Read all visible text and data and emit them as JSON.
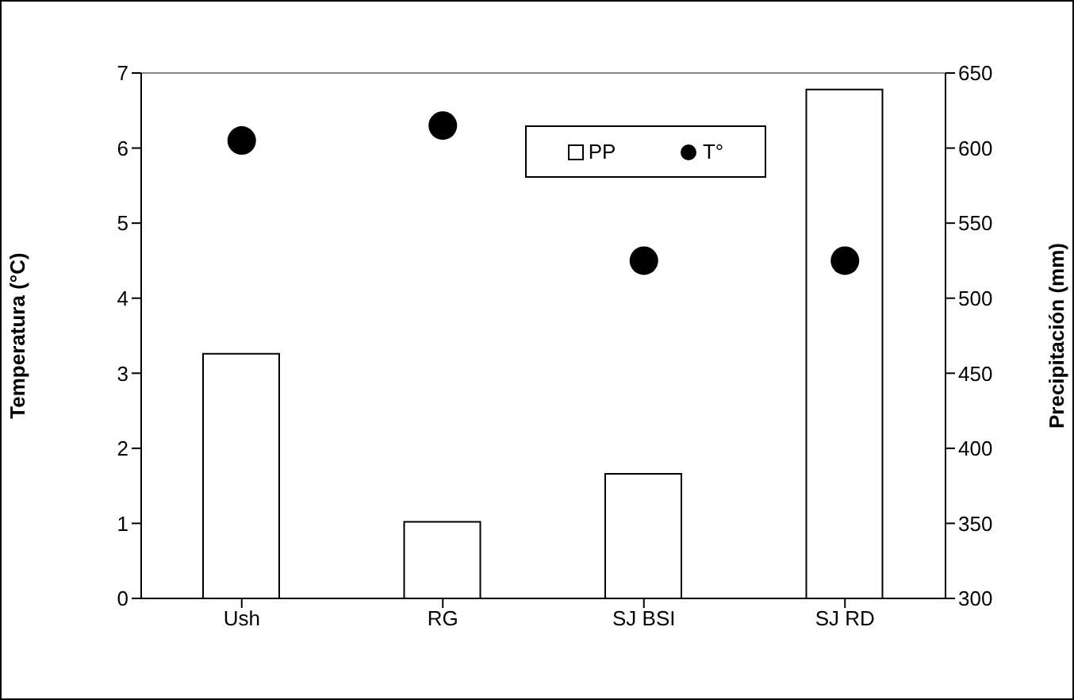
{
  "chart_data": {
    "type": "bar",
    "categories": [
      "Ush",
      "RG",
      "SJ BSI",
      "SJ RD"
    ],
    "series": [
      {
        "name": "PP",
        "axis": "y2",
        "color": "#ffffff",
        "values": [
          463,
          351,
          383,
          639
        ]
      },
      {
        "name": "T°",
        "type": "scatter",
        "color": "#000000",
        "marker": "circle",
        "values": [
          6.1,
          6.3,
          4.5,
          4.5
        ]
      }
    ],
    "ylabel": "Temperatura (°C)",
    "y2label": "Precipitación (mm)",
    "ylim": [
      0,
      7
    ],
    "yticks": [
      0,
      1,
      2,
      3,
      4,
      5,
      6,
      7
    ],
    "y2lim": [
      300,
      650
    ],
    "y2ticks": [
      300,
      350,
      400,
      450,
      500,
      550,
      600,
      650
    ],
    "legend": "top right"
  }
}
